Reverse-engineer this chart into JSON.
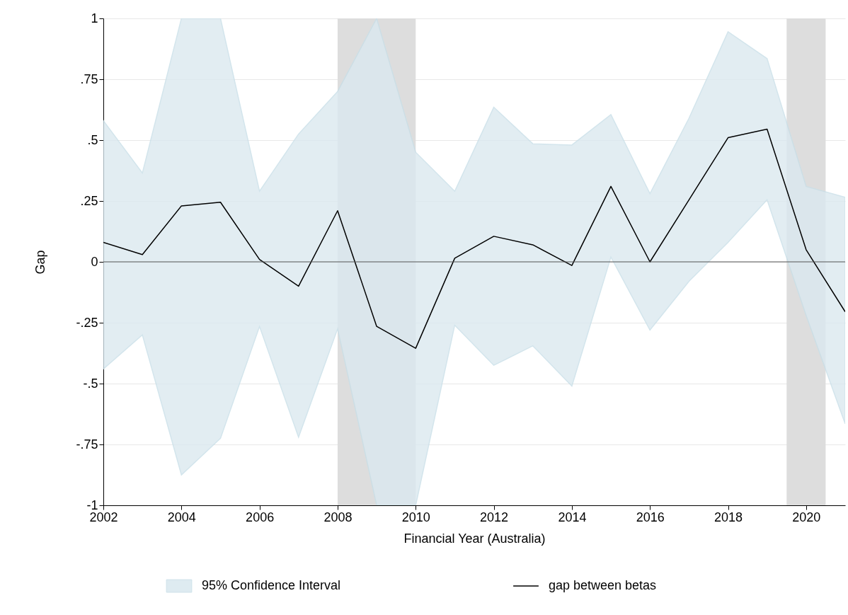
{
  "chart_data": {
    "type": "line",
    "xlabel": "Financial Year (Australia)",
    "ylabel": "Gap",
    "x": [
      2002,
      2003,
      2004,
      2005,
      2006,
      2007,
      2008,
      2009,
      2010,
      2011,
      2012,
      2013,
      2014,
      2015,
      2016,
      2017,
      2018,
      2019,
      2020,
      2021
    ],
    "series": [
      {
        "name": "gap between betas",
        "color": "#000000",
        "values": [
          0.08,
          0.03,
          0.23,
          0.245,
          0.01,
          -0.1,
          0.21,
          -0.265,
          -0.355,
          0.015,
          0.105,
          0.07,
          -0.015,
          0.31,
          0,
          0.255,
          0.51,
          0.545,
          0.05,
          -0.205
        ],
        "lower": [
          -0.44,
          -0.3,
          -0.875,
          -0.725,
          -0.265,
          -0.72,
          -0.275,
          -1,
          -1,
          -0.26,
          -0.425,
          -0.345,
          -0.51,
          0.02,
          -0.28,
          -0.08,
          0.08,
          0.255,
          -0.22,
          -0.665
        ],
        "upper": [
          0.58,
          0.365,
          1,
          1,
          0.29,
          0.525,
          0.7,
          1,
          0.45,
          0.29,
          0.635,
          0.485,
          0.48,
          0.605,
          0.28,
          0.59,
          0.945,
          0.835,
          0.31,
          0.265
        ]
      }
    ],
    "annotations": [
      "95% Confidence Interval"
    ],
    "xlim": [
      2002,
      2021
    ],
    "xticks": [
      2002,
      2004,
      2006,
      2008,
      2010,
      2012,
      2014,
      2016,
      2018,
      2020
    ],
    "ylim": [
      -1,
      1
    ],
    "yticks": [
      {
        "value": -1,
        "label": "-1"
      },
      {
        "value": -0.75,
        "label": "-.75"
      },
      {
        "value": -0.5,
        "label": "-.5"
      },
      {
        "value": -0.25,
        "label": "-.25"
      },
      {
        "value": 0,
        "label": "0"
      },
      {
        "value": 0.25,
        "label": ".25"
      },
      {
        "value": 0.5,
        "label": ".5"
      },
      {
        "value": 0.75,
        "label": ".75"
      },
      {
        "value": 1,
        "label": "1"
      }
    ],
    "ref_lines": [
      {
        "axis": "y",
        "value": 0,
        "color": "#555555"
      }
    ],
    "bands": [
      {
        "axis": "x",
        "from": 2008,
        "to": 2010,
        "color": "#dddddd"
      },
      {
        "axis": "x",
        "from": 2019.5,
        "to": 2020.5,
        "color": "#dddddd"
      }
    ],
    "grid": "y",
    "legend": "bottom",
    "marker": "none",
    "line_style": "solid"
  }
}
